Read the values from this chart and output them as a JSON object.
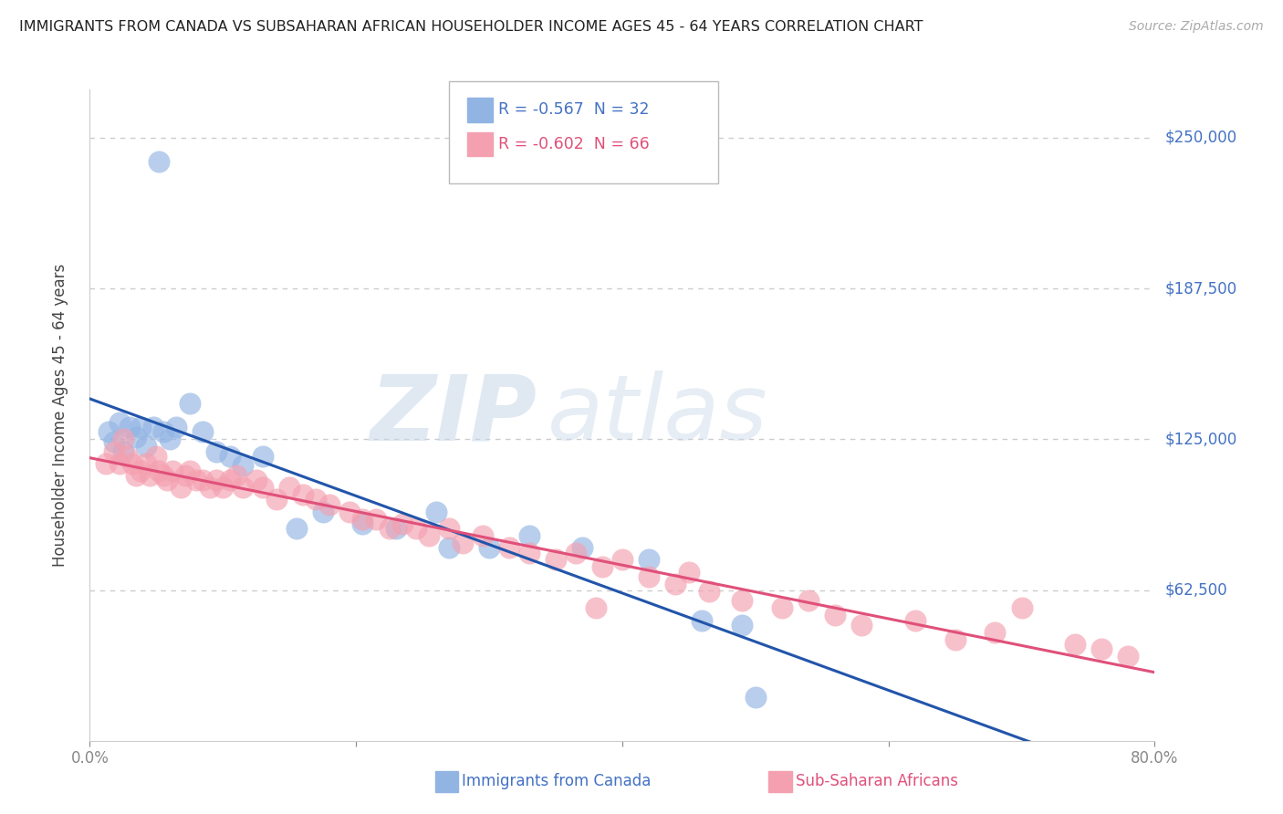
{
  "title": "IMMIGRANTS FROM CANADA VS SUBSAHARAN AFRICAN HOUSEHOLDER INCOME AGES 45 - 64 YEARS CORRELATION CHART",
  "source": "Source: ZipAtlas.com",
  "ylabel": "Householder Income Ages 45 - 64 years",
  "background_color": "#ffffff",
  "plot_bg_color": "#ffffff",
  "grid_color": "#cccccc",
  "xlim": [
    0.0,
    0.8
  ],
  "ylim": [
    0,
    270000
  ],
  "watermark_text": "ZIPatlas",
  "legend": {
    "canada_label": "Immigrants from Canada",
    "canada_color": "#92b4e3",
    "canada_line_color": "#2255aa",
    "canada_R": "-0.567",
    "canada_N": "32",
    "africa_label": "Sub-Saharan Africans",
    "africa_color": "#f4a0b0",
    "africa_line_color": "#e0507a",
    "africa_R": "-0.602",
    "africa_N": "66"
  },
  "ytick_vals": [
    62500,
    125000,
    187500,
    250000
  ],
  "ytick_labels": [
    "$62,500",
    "$125,000",
    "$187,500",
    "$250,000"
  ],
  "canada_x": [
    0.014,
    0.018,
    0.022,
    0.025,
    0.03,
    0.035,
    0.038,
    0.042,
    0.048,
    0.052,
    0.055,
    0.06,
    0.065,
    0.075,
    0.085,
    0.095,
    0.105,
    0.115,
    0.13,
    0.155,
    0.175,
    0.205,
    0.23,
    0.26,
    0.27,
    0.3,
    0.33,
    0.37,
    0.42,
    0.46,
    0.49,
    0.5
  ],
  "canada_y": [
    128000,
    124000,
    132000,
    120000,
    130000,
    126000,
    130000,
    122000,
    130000,
    240000,
    128000,
    125000,
    130000,
    140000,
    128000,
    120000,
    118000,
    114000,
    118000,
    88000,
    95000,
    90000,
    88000,
    95000,
    80000,
    80000,
    85000,
    80000,
    75000,
    50000,
    48000,
    18000
  ],
  "africa_x": [
    0.012,
    0.018,
    0.022,
    0.025,
    0.028,
    0.032,
    0.035,
    0.038,
    0.042,
    0.045,
    0.05,
    0.052,
    0.055,
    0.058,
    0.062,
    0.068,
    0.072,
    0.075,
    0.08,
    0.085,
    0.09,
    0.095,
    0.1,
    0.105,
    0.11,
    0.115,
    0.125,
    0.13,
    0.14,
    0.15,
    0.16,
    0.17,
    0.18,
    0.195,
    0.205,
    0.215,
    0.225,
    0.235,
    0.245,
    0.255,
    0.27,
    0.28,
    0.295,
    0.315,
    0.33,
    0.35,
    0.365,
    0.385,
    0.4,
    0.42,
    0.44,
    0.465,
    0.49,
    0.52,
    0.54,
    0.56,
    0.58,
    0.62,
    0.65,
    0.68,
    0.7,
    0.74,
    0.76,
    0.78,
    0.45,
    0.38
  ],
  "africa_y": [
    115000,
    120000,
    115000,
    125000,
    118000,
    115000,
    110000,
    112000,
    115000,
    110000,
    118000,
    112000,
    110000,
    108000,
    112000,
    105000,
    110000,
    112000,
    108000,
    108000,
    105000,
    108000,
    105000,
    108000,
    110000,
    105000,
    108000,
    105000,
    100000,
    105000,
    102000,
    100000,
    98000,
    95000,
    92000,
    92000,
    88000,
    90000,
    88000,
    85000,
    88000,
    82000,
    85000,
    80000,
    78000,
    75000,
    78000,
    72000,
    75000,
    68000,
    65000,
    62000,
    58000,
    55000,
    58000,
    52000,
    48000,
    50000,
    42000,
    45000,
    55000,
    40000,
    38000,
    35000,
    70000,
    55000
  ]
}
